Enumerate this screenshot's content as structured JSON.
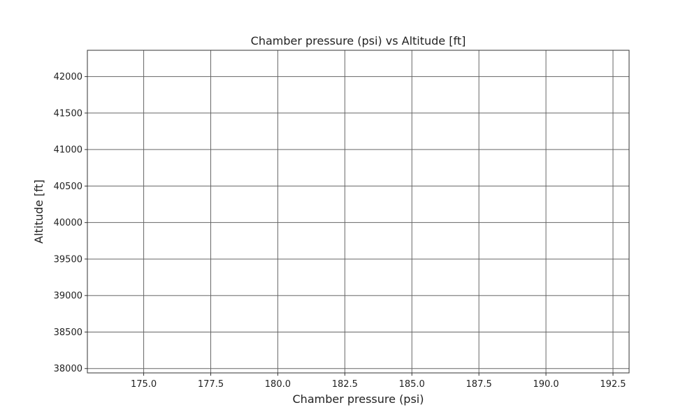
{
  "chart_data": {
    "type": "scatter",
    "title": "Chamber pressure (psi) vs Altitude [ft]",
    "xlabel": "Chamber pressure (psi)",
    "ylabel": "Altitude [ft]",
    "xlim": [
      172.9,
      193.1
    ],
    "ylim": [
      37940,
      42360
    ],
    "x_ticks": [
      "175.0",
      "177.5",
      "180.0",
      "182.5",
      "185.0",
      "187.5",
      "190.0",
      "192.5"
    ],
    "y_ticks": [
      "38000",
      "38500",
      "39000",
      "39500",
      "40000",
      "40500",
      "41000",
      "41500",
      "42000"
    ],
    "grid": true,
    "series": [],
    "colors": {
      "grid": "#666666",
      "frame": "#333333",
      "text": "#222222"
    }
  }
}
